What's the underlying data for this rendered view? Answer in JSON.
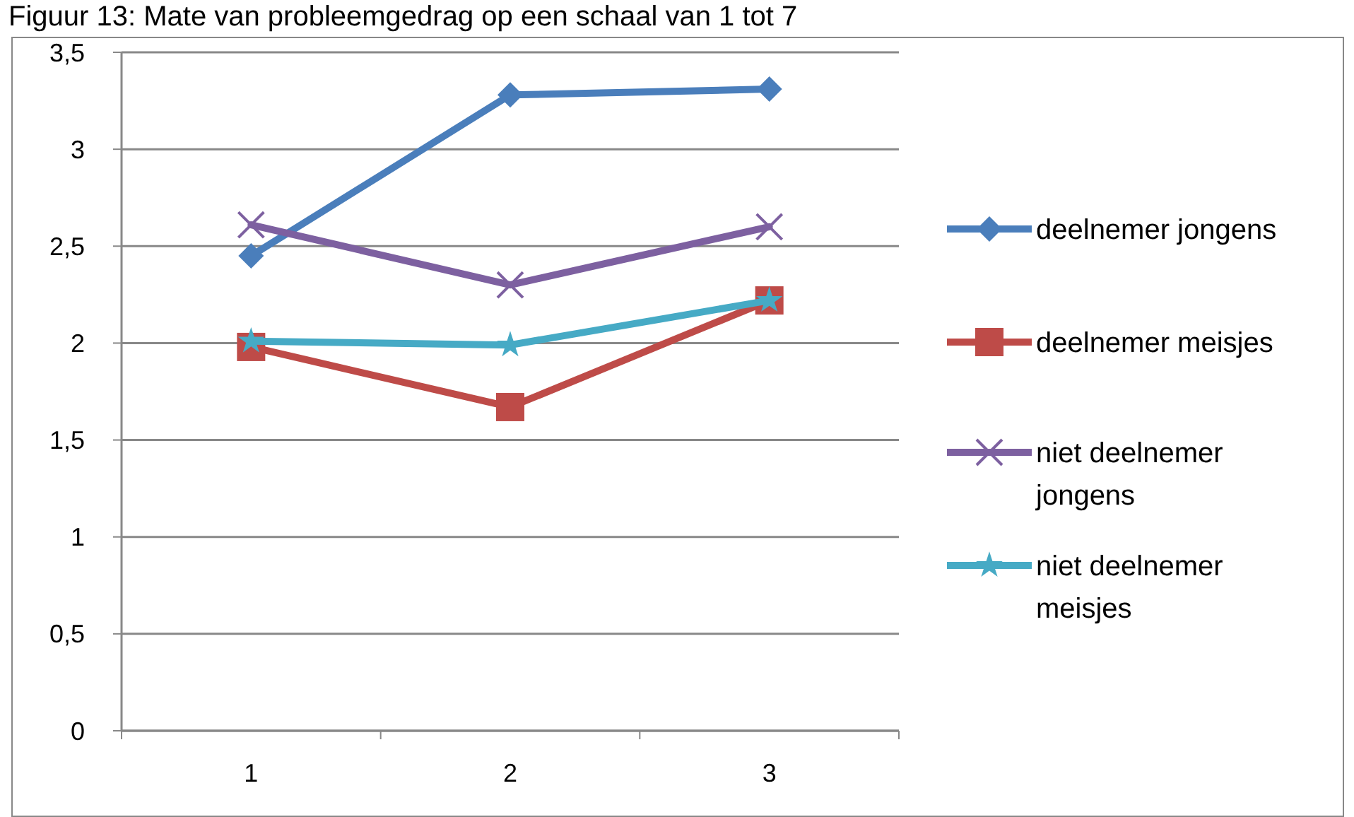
{
  "chart_data": {
    "type": "line",
    "title": "Figuur 13: Mate van probleemgedrag op een schaal van 1 tot 7",
    "categories": [
      "1",
      "2",
      "3"
    ],
    "series": [
      {
        "name": "deelnemer jongens",
        "color": "#4a7ebb",
        "marker": "diamond",
        "values": [
          2.45,
          3.28,
          3.31
        ]
      },
      {
        "name": "deelnemer meisjes",
        "color": "#be4b48",
        "marker": "square",
        "values": [
          1.98,
          1.67,
          2.22
        ]
      },
      {
        "name": "niet deelnemer jongens",
        "color": "#7d60a0",
        "marker": "cross",
        "values": [
          2.61,
          2.3,
          2.6
        ]
      },
      {
        "name": "niet deelnemer meisjes",
        "color": "#46aac5",
        "marker": "star",
        "values": [
          2.01,
          1.99,
          2.22
        ]
      }
    ],
    "ylim": [
      0,
      3.5
    ],
    "yticks": [
      {
        "value": 0,
        "label": "0"
      },
      {
        "value": 0.5,
        "label": "0,5"
      },
      {
        "value": 1,
        "label": "1"
      },
      {
        "value": 1.5,
        "label": "1,5"
      },
      {
        "value": 2,
        "label": "2"
      },
      {
        "value": 2.5,
        "label": "2,5"
      },
      {
        "value": 3,
        "label": "3"
      },
      {
        "value": 3.5,
        "label": "3,5"
      }
    ],
    "grid": "y",
    "legend": "right"
  }
}
